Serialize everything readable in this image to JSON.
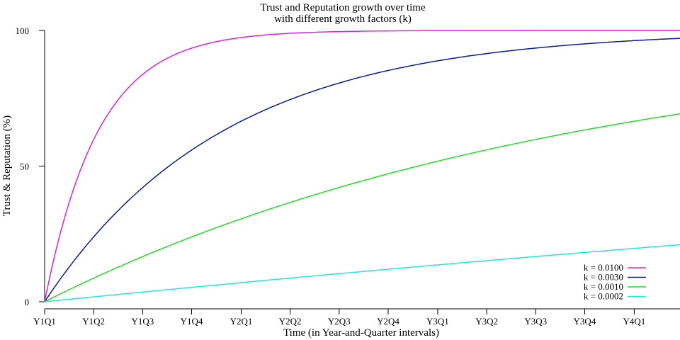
{
  "chart_data": {
    "type": "line",
    "title_lines": [
      "Trust and Reputation growth over time",
      "with different growth factors (k)"
    ],
    "xlabel": "Time (in Year-and-Quarter intervals)",
    "ylabel": "Trust & Reputation (%)",
    "x_ticks": [
      {
        "x": 0,
        "label": "Y1Q1"
      },
      {
        "x": 91,
        "label": "Y1Q2"
      },
      {
        "x": 182,
        "label": "Y1Q3"
      },
      {
        "x": 273,
        "label": "Y1Q4"
      },
      {
        "x": 365,
        "label": "Y2Q1"
      },
      {
        "x": 456,
        "label": "Y2Q2"
      },
      {
        "x": 547,
        "label": "Y2Q3"
      },
      {
        "x": 638,
        "label": "Y2Q4"
      },
      {
        "x": 730,
        "label": "Y3Q1"
      },
      {
        "x": 821,
        "label": "Y3Q2"
      },
      {
        "x": 912,
        "label": "Y3Q3"
      },
      {
        "x": 1003,
        "label": "Y3Q4"
      },
      {
        "x": 1095,
        "label": "Y4Q1"
      }
    ],
    "xlim": [
      0,
      1180
    ],
    "ylim": [
      0,
      100
    ],
    "y_ticks": [
      0,
      50,
      100
    ],
    "grid": false,
    "legend_position": "bottom-right",
    "series": [
      {
        "name": "k = 0.0100",
        "k": 0.01,
        "color": "#e020e0"
      },
      {
        "name": "k = 0.0030",
        "k": 0.003,
        "color": "#0a1aa0"
      },
      {
        "name": "k = 0.0010",
        "k": 0.001,
        "color": "#22dd22"
      },
      {
        "name": "k = 0.0002",
        "k": 0.0002,
        "color": "#22e6d6"
      }
    ]
  }
}
